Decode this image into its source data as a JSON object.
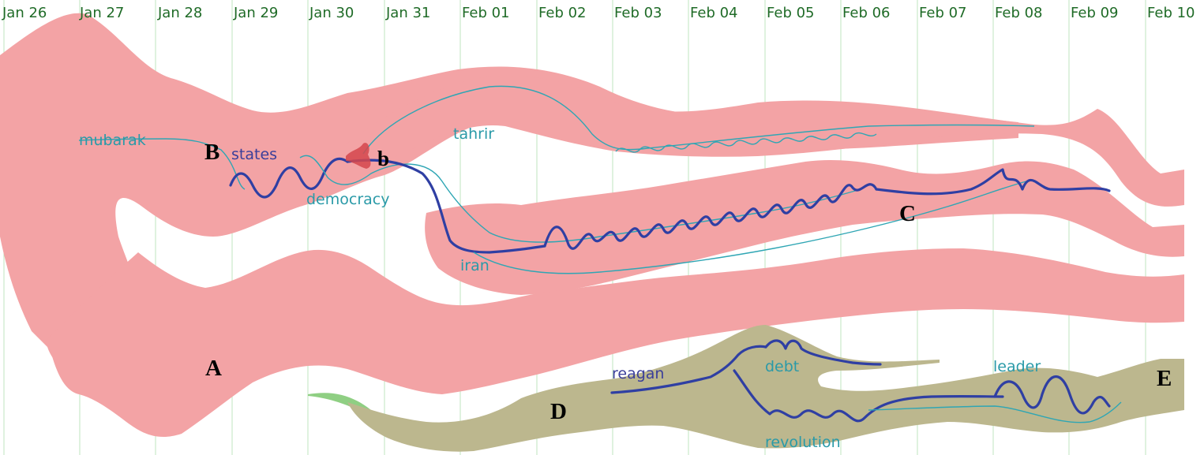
{
  "timeline": {
    "dates": [
      "Jan 26",
      "Jan 27",
      "Jan 28",
      "Jan 29",
      "Jan 30",
      "Jan 31",
      "Feb 01",
      "Feb 02",
      "Feb 03",
      "Feb 04",
      "Feb 05",
      "Feb 06",
      "Feb 07",
      "Feb 08",
      "Feb 09",
      "Feb 10"
    ]
  },
  "keywords": {
    "mubarak": "mubarak",
    "states": "states",
    "democracy": "democracy",
    "tahrir": "tahrir",
    "iran": "iran",
    "reagan": "reagan",
    "debt": "debt",
    "revolution": "revolution",
    "leader": "leader"
  },
  "markers": {
    "A": "A",
    "B": "B",
    "b": "b",
    "C": "C",
    "D": "D",
    "E": "E"
  },
  "colors": {
    "topic_red": "#f3a3a5",
    "topic_olive": "#bcb78e",
    "topic_green": "#8fcf83",
    "thread_dark": "#2f3fa3",
    "thread_light": "#2fa6b4",
    "date_label": "#1f6b27"
  }
}
